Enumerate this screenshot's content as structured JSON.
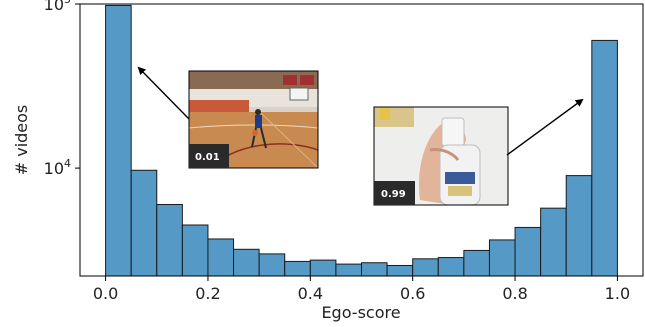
{
  "chart_data": {
    "type": "bar",
    "subtype": "histogram",
    "xlabel": "Ego-score",
    "ylabel": "# videos",
    "xlim": [
      -0.05,
      1.05
    ],
    "ylim": [
      2200,
      100000
    ],
    "yscale": "log",
    "bin_edges": [
      0.0,
      0.05,
      0.1,
      0.15,
      0.2,
      0.25,
      0.3,
      0.35,
      0.4,
      0.45,
      0.5,
      0.55,
      0.6,
      0.65,
      0.7,
      0.75,
      0.8,
      0.85,
      0.9,
      0.95,
      1.0
    ],
    "values": [
      98000,
      9700,
      6000,
      4500,
      3700,
      3200,
      3000,
      2700,
      2750,
      2600,
      2650,
      2550,
      2800,
      2850,
      3150,
      3650,
      4350,
      5700,
      9000,
      60000
    ],
    "x_ticks": [
      "0.0",
      "0.2",
      "0.4",
      "0.6",
      "0.8",
      "1.0"
    ],
    "y_ticks": [
      {
        "value": 10000,
        "base": "10",
        "exp": "4"
      },
      {
        "value": 100000,
        "base": "10",
        "exp": "5"
      }
    ],
    "bar_color": "#5599c7",
    "bar_edge_color": "#1a1a1a",
    "grid": false,
    "annotations": [
      {
        "label": "0.01",
        "description": "thumbnail of a basketball player in a gym",
        "points_to_x": 0.025
      },
      {
        "label": "0.99",
        "description": "thumbnail of a hand holding a bottle",
        "points_to_x": 0.975
      }
    ]
  }
}
